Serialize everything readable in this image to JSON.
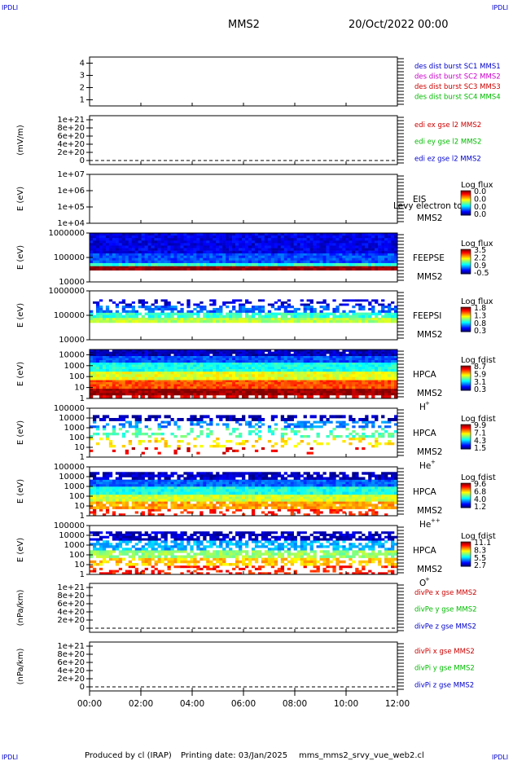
{
  "corner_label": "IPDLI",
  "header": {
    "title": "MMS2",
    "date": "20/Oct/2022 00:00"
  },
  "footer": {
    "produced_by": "Produced by cl (IRAP)",
    "printing_date": "Printing date: 03/Jan/2025",
    "script_name": "mms_mms2_srvy_vue_web2.cl"
  },
  "x_axis": {
    "range_hours": [
      0,
      12
    ],
    "tick_hours": [
      0,
      2,
      4,
      6,
      8,
      10,
      12
    ],
    "tick_labels": [
      "00:00",
      "02:00",
      "04:00",
      "06:00",
      "08:00",
      "10:00",
      "12:00"
    ]
  },
  "colors": {
    "blue": "#0000cc",
    "magenta": "#cc00cc",
    "red": "#cc0000",
    "green": "#00bb00",
    "dash": "#000000",
    "axis": "#000000"
  },
  "chart_data": [
    {
      "id": "des",
      "type": "line",
      "ylabel": "",
      "ylim": [
        0.5,
        4.5
      ],
      "yticks": [
        1,
        2,
        3,
        4
      ],
      "ytick_labels": [
        "1",
        "2",
        "3",
        "4"
      ],
      "legend": [
        {
          "text": "des dist burst SC1 MMS1",
          "color": "#0000cc"
        },
        {
          "text": "des dist burst SC2 MMS2",
          "color": "#cc00cc"
        },
        {
          "text": "des dist burst SC3 MMS3",
          "color": "#cc0000"
        },
        {
          "text": "des dist burst SC4 MMS4",
          "color": "#00bb00"
        }
      ],
      "series": []
    },
    {
      "id": "edi",
      "type": "line",
      "ylabel": "(mV/m)",
      "ylim": [
        -1e+20,
        1.1e+21
      ],
      "yticks": [
        0,
        2e+20,
        4e+20,
        6e+20,
        8e+20,
        1e+21
      ],
      "ytick_labels": [
        "0",
        "2e+20",
        "4e+20",
        "6e+20",
        "8e+20",
        "1e+21"
      ],
      "zero_line": 0,
      "legend": [
        {
          "text": "edi ex gse l2 MMS2",
          "color": "#cc0000"
        },
        {
          "text": "edi ey gse l2 MMS2",
          "color": "#00bb00"
        },
        {
          "text": "edi ez gse l2 MMS2",
          "color": "#0000cc"
        }
      ],
      "series": []
    },
    {
      "id": "eis",
      "type": "heatmap",
      "ylabel": "E (eV)",
      "scale": "log",
      "ylim": [
        10000.0,
        10000000.0
      ],
      "ytick_labels": [
        "1e+04",
        "1e+05",
        "1e+06",
        "1e+07"
      ],
      "instrument": "EIS",
      "spacecraft": "MMS2",
      "overlay_text": "Levy electron to",
      "colorbar": {
        "title": "Log flux",
        "labels": [
          "0.0",
          "0.0",
          "0.0",
          "0.0"
        ]
      },
      "bands": []
    },
    {
      "id": "feepse",
      "type": "heatmap",
      "ylabel": "E (eV)",
      "scale": "log",
      "ylim": [
        10000.0,
        1000000.0
      ],
      "ytick_labels": [
        "10000",
        "100000",
        "1000000"
      ],
      "instrument": "FEEPSE",
      "spacecraft": "MMS2",
      "colorbar": {
        "title": "Log flux",
        "labels": [
          "3.5",
          "2.2",
          "0.9",
          "-0.5"
        ]
      },
      "bands": [
        {
          "e_min": 30000,
          "e_max": 45000,
          "level": 1.0,
          "cover": 1.0
        },
        {
          "e_min": 45000,
          "e_max": 60000,
          "level": 0.42,
          "cover": 1.0
        },
        {
          "e_min": 60000,
          "e_max": 150000,
          "level": 0.2,
          "cover": 1.0
        },
        {
          "e_min": 150000,
          "e_max": 1000000,
          "level": 0.1,
          "cover": 1.0
        }
      ]
    },
    {
      "id": "feepsi",
      "type": "heatmap",
      "ylabel": "E (eV)",
      "scale": "log",
      "ylim": [
        10000.0,
        1000000.0
      ],
      "ytick_labels": [
        "10000",
        "100000",
        "1000000"
      ],
      "instrument": "FEEPSI",
      "spacecraft": "MMS2",
      "colorbar": {
        "title": "Log flux",
        "labels": [
          "1.8",
          "1.3",
          "0.8",
          "0.3"
        ]
      },
      "bands": [
        {
          "e_min": 50000,
          "e_max": 80000,
          "level": 0.55,
          "cover": 1.0
        },
        {
          "e_min": 80000,
          "e_max": 130000,
          "level": 0.42,
          "cover": 0.9
        },
        {
          "e_min": 130000,
          "e_max": 250000,
          "level": 0.22,
          "cover": 0.55
        },
        {
          "e_min": 250000,
          "e_max": 450000,
          "level": 0.08,
          "cover": 0.3
        }
      ]
    },
    {
      "id": "hpca_h",
      "type": "heatmap",
      "ylabel": "E (eV)",
      "scale": "log",
      "ylim": [
        1,
        30000
      ],
      "ytick_labels": [
        "1",
        "10",
        "100",
        "1000",
        "10000"
      ],
      "instrument": "HPCA",
      "spacecraft": "MMS2",
      "species": "H+",
      "colorbar": {
        "title": "Log fdist",
        "labels": [
          "8.7",
          "5.9",
          "3.1",
          "0.3"
        ]
      },
      "bands": [
        {
          "e_min": 1,
          "e_max": 2,
          "level": 0.9,
          "cover": 0.55
        },
        {
          "e_min": 2,
          "e_max": 8,
          "level": 0.98,
          "cover": 1.0
        },
        {
          "e_min": 8,
          "e_max": 50,
          "level": 0.8,
          "cover": 1.0
        },
        {
          "e_min": 50,
          "e_max": 300,
          "level": 0.6,
          "cover": 1.0
        },
        {
          "e_min": 300,
          "e_max": 2000,
          "level": 0.4,
          "cover": 1.0
        },
        {
          "e_min": 2000,
          "e_max": 8000,
          "level": 0.2,
          "cover": 1.0
        },
        {
          "e_min": 8000,
          "e_max": 30000,
          "level": 0.06,
          "cover": 0.98
        }
      ]
    },
    {
      "id": "hpca_he",
      "type": "heatmap",
      "ylabel": "E (eV)",
      "scale": "log",
      "ylim": [
        1,
        100000
      ],
      "ytick_labels": [
        "1",
        "10",
        "100",
        "1000",
        "10000",
        "100000"
      ],
      "instrument": "HPCA",
      "spacecraft": "MMS2",
      "species": "He+",
      "colorbar": {
        "title": "Log fdist",
        "labels": [
          "9.9",
          "7.1",
          "4.3",
          "1.5"
        ]
      },
      "bands": [
        {
          "e_min": 2,
          "e_max": 10,
          "level": 0.9,
          "cover": 0.1
        },
        {
          "e_min": 10,
          "e_max": 100,
          "level": 0.65,
          "cover": 0.2
        },
        {
          "e_min": 100,
          "e_max": 1000,
          "level": 0.45,
          "cover": 0.3
        },
        {
          "e_min": 1000,
          "e_max": 5000,
          "level": 0.25,
          "cover": 0.4
        },
        {
          "e_min": 5000,
          "e_max": 20000,
          "level": 0.05,
          "cover": 0.55
        }
      ]
    },
    {
      "id": "hpca_hepp",
      "type": "heatmap",
      "ylabel": "E (eV)",
      "scale": "log",
      "ylim": [
        1,
        100000
      ],
      "ytick_labels": [
        "1",
        "10",
        "100",
        "1000",
        "10000",
        "100000"
      ],
      "instrument": "HPCA",
      "spacecraft": "MMS2",
      "species": "He++",
      "colorbar": {
        "title": "Log fdist",
        "labels": [
          "9.6",
          "6.8",
          "4.0",
          "1.2"
        ]
      },
      "bands": [
        {
          "e_min": 1,
          "e_max": 5,
          "level": 0.85,
          "cover": 0.3
        },
        {
          "e_min": 5,
          "e_max": 30,
          "level": 0.72,
          "cover": 0.9
        },
        {
          "e_min": 30,
          "e_max": 150,
          "level": 0.58,
          "cover": 1.0
        },
        {
          "e_min": 150,
          "e_max": 1000,
          "level": 0.4,
          "cover": 1.0
        },
        {
          "e_min": 1000,
          "e_max": 5000,
          "level": 0.22,
          "cover": 1.0
        },
        {
          "e_min": 5000,
          "e_max": 30000,
          "level": 0.06,
          "cover": 0.8
        }
      ]
    },
    {
      "id": "hpca_o",
      "type": "heatmap",
      "ylabel": "E (eV)",
      "scale": "log",
      "ylim": [
        1,
        100000
      ],
      "ytick_labels": [
        "1",
        "10",
        "100",
        "1000",
        "10000",
        "100000"
      ],
      "instrument": "HPCA",
      "spacecraft": "MMS2",
      "species": "O+",
      "colorbar": {
        "title": "Log fdist",
        "labels": [
          "11.1",
          "8.3",
          "5.5",
          "2.7"
        ]
      },
      "bands": [
        {
          "e_min": 1,
          "e_max": 8,
          "level": 0.85,
          "cover": 0.35
        },
        {
          "e_min": 8,
          "e_max": 50,
          "level": 0.68,
          "cover": 0.6
        },
        {
          "e_min": 50,
          "e_max": 300,
          "level": 0.52,
          "cover": 0.75
        },
        {
          "e_min": 300,
          "e_max": 3000,
          "level": 0.3,
          "cover": 0.6
        },
        {
          "e_min": 3000,
          "e_max": 25000,
          "level": 0.06,
          "cover": 0.7
        }
      ]
    },
    {
      "id": "divpe",
      "type": "line",
      "ylabel": "(nPa/km)",
      "ylim": [
        -1e+20,
        1.1e+21
      ],
      "yticks": [
        0,
        2e+20,
        4e+20,
        6e+20,
        8e+20,
        1e+21
      ],
      "ytick_labels": [
        "0",
        "2e+20",
        "4e+20",
        "6e+20",
        "8e+20",
        "1e+21"
      ],
      "zero_line": 0,
      "legend": [
        {
          "text": "divPe x gse MMS2",
          "color": "#cc0000"
        },
        {
          "text": "divPe y gse MMS2",
          "color": "#00bb00"
        },
        {
          "text": "divPe z gse MMS2",
          "color": "#0000cc"
        }
      ],
      "series": []
    },
    {
      "id": "divpi",
      "type": "line",
      "ylabel": "(nPa/km)",
      "ylim": [
        -1e+20,
        1.1e+21
      ],
      "yticks": [
        0,
        2e+20,
        4e+20,
        6e+20,
        8e+20,
        1e+21
      ],
      "ytick_labels": [
        "0",
        "2e+20",
        "4e+20",
        "6e+20",
        "8e+20",
        "1e+21"
      ],
      "zero_line": 0,
      "legend": [
        {
          "text": "divPi x gse MMS2",
          "color": "#cc0000"
        },
        {
          "text": "divPi y gse MMS2",
          "color": "#00bb00"
        },
        {
          "text": "divPi z gse MMS2",
          "color": "#0000cc"
        }
      ],
      "series": []
    }
  ]
}
